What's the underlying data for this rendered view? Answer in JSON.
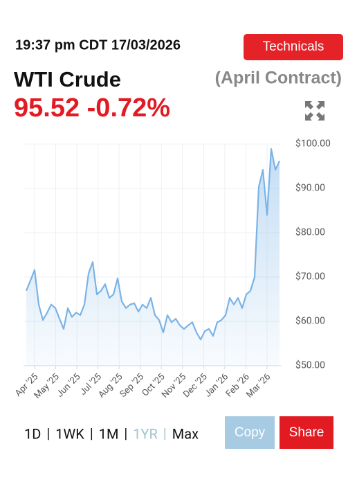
{
  "header": {
    "timestamp": "19:37 pm CDT 17/03/2026",
    "button": "Technicals",
    "title": "WTI Crude",
    "contract": "(April Contract)",
    "quote": "95.52 -0.72%"
  },
  "chart_data": {
    "type": "line",
    "x_labels": [
      "Apr '25",
      "May '25",
      "Jun '25",
      "Jul '25",
      "Aug '25",
      "Sep '25",
      "Oct '25",
      "Nov '25",
      "Dec '25",
      "Jan '26",
      "Feb '26",
      "Mar '26"
    ],
    "series": [
      {
        "name": "WTI Crude",
        "color": "#7ab3e6",
        "values": [
          66.9,
          69.2,
          71.6,
          63.8,
          60.3,
          61.9,
          63.8,
          63.0,
          60.6,
          58.3,
          63.0,
          61.0,
          62.0,
          61.4,
          63.8,
          70.8,
          73.4,
          66.1,
          66.9,
          68.4,
          65.3,
          66.1,
          69.7,
          64.5,
          63.0,
          63.8,
          64.1,
          62.2,
          63.8,
          63.0,
          65.3,
          61.4,
          60.3,
          57.5,
          61.4,
          59.8,
          60.6,
          59.1,
          58.3,
          59.1,
          59.8,
          57.5,
          55.9,
          57.8,
          58.3,
          56.7,
          59.8,
          60.3,
          61.4,
          65.3,
          63.8,
          65.3,
          63.0,
          66.1,
          66.9,
          70.0,
          90.3,
          94.2,
          84.0,
          98.9,
          94.2,
          96.2
        ]
      }
    ],
    "ylim": [
      50,
      100
    ],
    "yticks": [
      {
        "value": 50,
        "label": "$50.00"
      },
      {
        "value": 60,
        "label": "$60.00"
      },
      {
        "value": 70,
        "label": "$70.00"
      },
      {
        "value": 80,
        "label": "$80.00"
      },
      {
        "value": 90,
        "label": "$90.00"
      },
      {
        "value": 100,
        "label": "$100.00"
      }
    ],
    "grid": true
  },
  "controls": {
    "ranges": [
      "1D",
      "1WK",
      "1M",
      "1YR",
      "Max"
    ],
    "separator": "|",
    "selected": 3,
    "copy": "Copy",
    "share": "Share"
  }
}
